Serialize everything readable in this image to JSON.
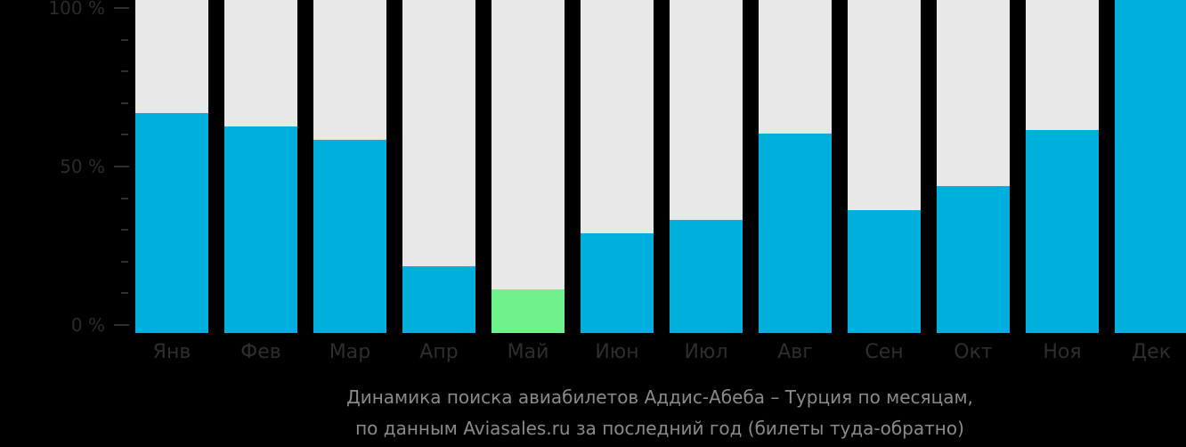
{
  "chart_data": {
    "type": "bar",
    "stacked_percent": true,
    "title": "Динамика поиска авиабилетов Аддис-Абеба – Турция по месяцам,",
    "subtitle": "по данным Aviasales.ru за последний год (билеты туда-обратно)",
    "xlabel": "",
    "ylabel": "",
    "ylim": [
      0,
      100
    ],
    "yticks": [
      "0 %",
      "50 %",
      "100 %"
    ],
    "grid": false,
    "legend": null,
    "categories": [
      "Янв",
      "Фев",
      "Мар",
      "Апр",
      "Май",
      "Июн",
      "Июл",
      "Авг",
      "Сен",
      "Окт",
      "Ноя",
      "Дек"
    ],
    "values": [
      66,
      62,
      58,
      20,
      13,
      30,
      34,
      60,
      37,
      44,
      61,
      100
    ],
    "highlight_index": 4,
    "colors": {
      "bar": "#00b0dc",
      "highlight": "#6ef08a",
      "background_bar": "#e8e8e8",
      "background": "#000000"
    }
  },
  "axis": {
    "y_labels": [
      {
        "text": "100 %",
        "pct": 100
      },
      {
        "text": "50 %",
        "pct": 50
      },
      {
        "text": "0 %",
        "pct": 0
      }
    ]
  },
  "caption": {
    "line1": "Динамика поиска авиабилетов Аддис-Абеба – Турция по месяцам,",
    "line2": "по данным Aviasales.ru за последний год (билеты туда-обратно)"
  }
}
